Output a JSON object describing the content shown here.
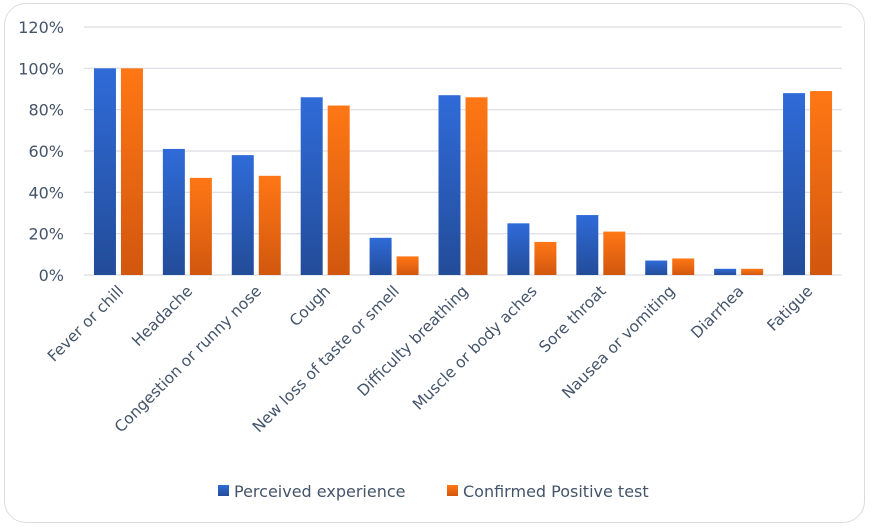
{
  "chart_data": {
    "type": "bar",
    "title": "",
    "xlabel": "",
    "ylabel": "",
    "ylim": [
      0,
      120
    ],
    "yticks": [
      0,
      20,
      40,
      60,
      80,
      100,
      120
    ],
    "ytick_labels": [
      "0%",
      "20%",
      "40%",
      "60%",
      "80%",
      "100%",
      "120%"
    ],
    "grid": true,
    "legend_position": "bottom",
    "categories": [
      "Fever or chill",
      "Headache",
      "Congestion or runny nose",
      "Cough",
      "New loss of taste or smell",
      "Difficulty breathing",
      "Muscle or body aches",
      "Sore throat",
      "Nausea or vomiting",
      "Diarrhea",
      "Fatigue"
    ],
    "series": [
      {
        "name": "Perceived experience",
        "color": "#2e64c8",
        "values": [
          100,
          61,
          58,
          86,
          18,
          87,
          25,
          29,
          7,
          3,
          88
        ]
      },
      {
        "name": "Confirmed Positive test",
        "color": "#f26b10",
        "values": [
          100,
          47,
          48,
          82,
          9,
          86,
          16,
          21,
          8,
          3,
          89
        ]
      }
    ]
  }
}
